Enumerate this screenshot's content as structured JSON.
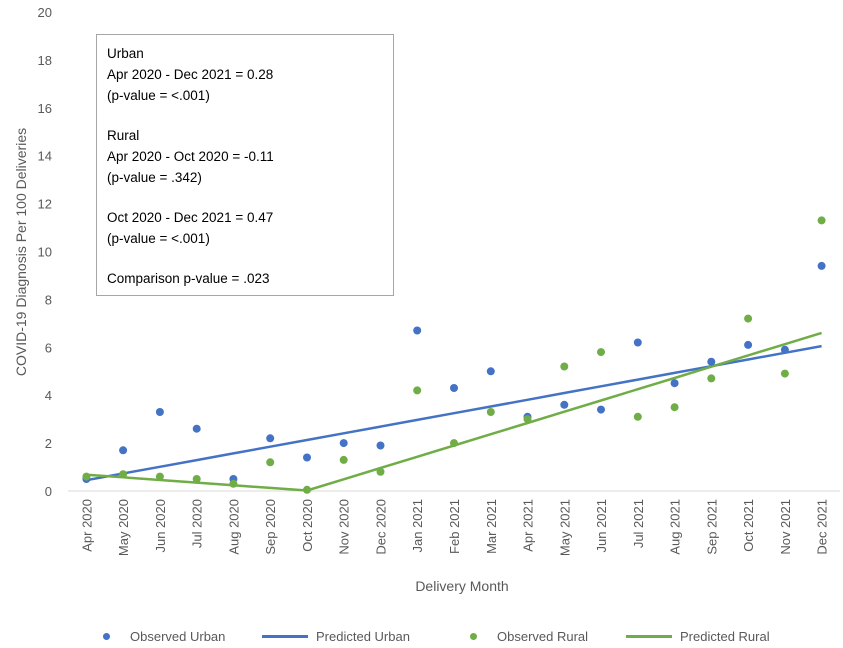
{
  "chart_data": {
    "type": "scatter",
    "xlabel": "Delivery Month",
    "ylabel": "COVID-19 Diagnosis Per 100 Deliveries",
    "ylim": [
      0,
      20
    ],
    "yticks": [
      0,
      2,
      4,
      6,
      8,
      10,
      12,
      14,
      16,
      18,
      20
    ],
    "grid": false,
    "legend_position": "bottom",
    "categories": [
      "Apr 2020",
      "May 2020",
      "Jun 2020",
      "Jul 2020",
      "Aug 2020",
      "Sep 2020",
      "Oct 2020",
      "Nov 2020",
      "Dec 2020",
      "Jan 2021",
      "Feb 2021",
      "Mar 2021",
      "Apr 2021",
      "May 2021",
      "Jun 2021",
      "Jul 2021",
      "Aug 2021",
      "Sep 2021",
      "Oct 2021",
      "Nov 2021",
      "Dec 2021"
    ],
    "series": [
      {
        "name": "Observed Urban",
        "kind": "points",
        "color": "#4472c4",
        "values": [
          0.5,
          1.7,
          3.3,
          2.6,
          0.5,
          2.2,
          1.4,
          2.0,
          1.9,
          6.7,
          4.3,
          5.0,
          3.1,
          3.6,
          3.4,
          6.2,
          4.5,
          5.4,
          6.1,
          5.9,
          9.4
        ]
      },
      {
        "name": "Predicted Urban",
        "kind": "line",
        "color": "#4472c4",
        "values": [
          0.45,
          0.73,
          1.01,
          1.29,
          1.57,
          1.85,
          2.13,
          2.41,
          2.69,
          2.97,
          3.25,
          3.53,
          3.81,
          4.09,
          4.37,
          4.65,
          4.93,
          5.21,
          5.49,
          5.77,
          6.05
        ]
      },
      {
        "name": "Observed Rural",
        "kind": "points",
        "color": "#70ad47",
        "values": [
          0.6,
          0.7,
          0.6,
          0.5,
          0.3,
          1.2,
          0.05,
          1.3,
          0.8,
          4.2,
          2.0,
          3.3,
          3.0,
          5.2,
          5.8,
          3.1,
          3.5,
          4.7,
          7.2,
          4.9,
          11.3
        ]
      },
      {
        "name": "Predicted Rural",
        "kind": "line",
        "color": "#70ad47",
        "values": [
          0.68,
          0.57,
          0.46,
          0.35,
          0.24,
          0.13,
          0.02,
          0.49,
          0.96,
          1.43,
          1.9,
          2.37,
          2.84,
          3.31,
          3.78,
          4.25,
          4.72,
          5.19,
          5.66,
          6.13,
          6.6
        ]
      }
    ],
    "annotation": {
      "urban_title": "Urban",
      "urban_line1": "Apr 2020 - Dec 2021 = 0.28",
      "urban_line2": "(p-value = <.001)",
      "rural_title": "Rural",
      "rural_line1": "Apr 2020 - Oct 2020 = -0.11",
      "rural_line2": "(p-value = .342)",
      "rural_line3": "Oct 2020 - Dec 2021 = 0.47",
      "rural_line4": "(p-value = <.001)",
      "comparison": "Comparison p-value = .023"
    },
    "legend": [
      {
        "label": "Observed Urban",
        "kind": "dot",
        "color": "#4472c4"
      },
      {
        "label": "Predicted Urban",
        "kind": "line",
        "color": "#4472c4"
      },
      {
        "label": "Observed Rural",
        "kind": "dot",
        "color": "#70ad47"
      },
      {
        "label": "Predicted Rural",
        "kind": "line",
        "color": "#70ad47"
      }
    ]
  }
}
